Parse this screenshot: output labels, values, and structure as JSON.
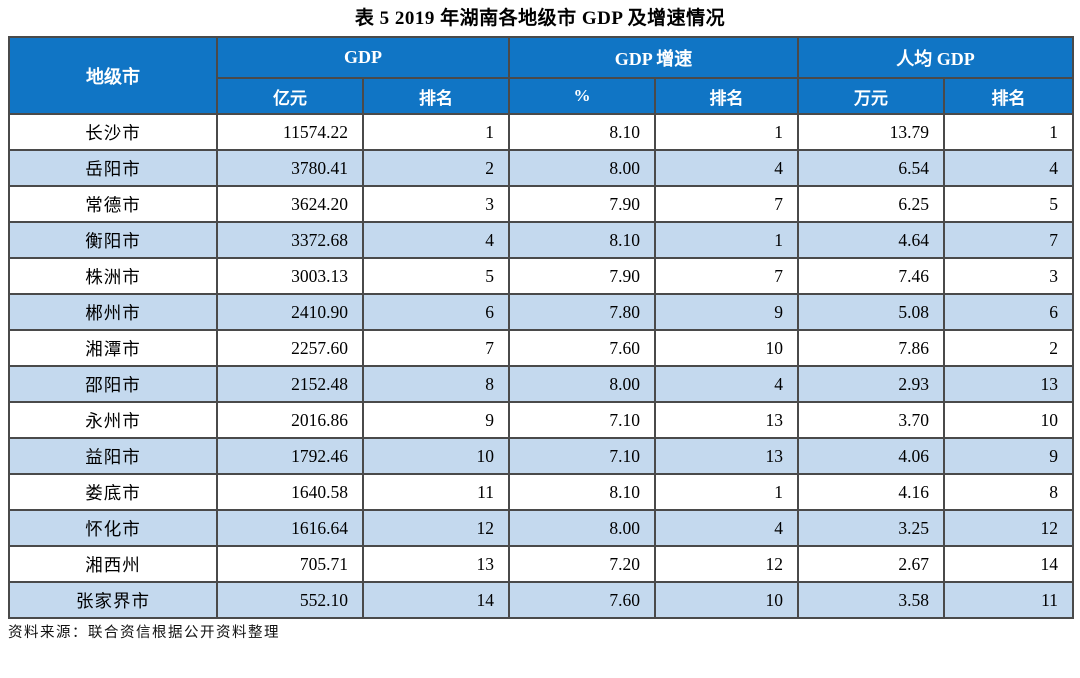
{
  "title": "表 5  2019 年湖南各地级市 GDP 及增速情况",
  "table": {
    "corner_header": "地级市",
    "group_headers": {
      "gdp": "GDP",
      "growth": "GDP 增速",
      "per_capita": "人均 GDP"
    },
    "sub_headers": {
      "gdp_unit": "亿元",
      "gdp_rank": "排名",
      "growth_unit": "%",
      "growth_rank": "排名",
      "pc_unit": "万元",
      "pc_rank": "排名"
    },
    "rows": [
      {
        "city": "长沙市",
        "gdp": "11574.22",
        "gdp_rank": "1",
        "growth": "8.10",
        "growth_rank": "1",
        "pc": "13.79",
        "pc_rank": "1"
      },
      {
        "city": "岳阳市",
        "gdp": "3780.41",
        "gdp_rank": "2",
        "growth": "8.00",
        "growth_rank": "4",
        "pc": "6.54",
        "pc_rank": "4"
      },
      {
        "city": "常德市",
        "gdp": "3624.20",
        "gdp_rank": "3",
        "growth": "7.90",
        "growth_rank": "7",
        "pc": "6.25",
        "pc_rank": "5"
      },
      {
        "city": "衡阳市",
        "gdp": "3372.68",
        "gdp_rank": "4",
        "growth": "8.10",
        "growth_rank": "1",
        "pc": "4.64",
        "pc_rank": "7"
      },
      {
        "city": "株洲市",
        "gdp": "3003.13",
        "gdp_rank": "5",
        "growth": "7.90",
        "growth_rank": "7",
        "pc": "7.46",
        "pc_rank": "3"
      },
      {
        "city": "郴州市",
        "gdp": "2410.90",
        "gdp_rank": "6",
        "growth": "7.80",
        "growth_rank": "9",
        "pc": "5.08",
        "pc_rank": "6"
      },
      {
        "city": "湘潭市",
        "gdp": "2257.60",
        "gdp_rank": "7",
        "growth": "7.60",
        "growth_rank": "10",
        "pc": "7.86",
        "pc_rank": "2"
      },
      {
        "city": "邵阳市",
        "gdp": "2152.48",
        "gdp_rank": "8",
        "growth": "8.00",
        "growth_rank": "4",
        "pc": "2.93",
        "pc_rank": "13"
      },
      {
        "city": "永州市",
        "gdp": "2016.86",
        "gdp_rank": "9",
        "growth": "7.10",
        "growth_rank": "13",
        "pc": "3.70",
        "pc_rank": "10"
      },
      {
        "city": "益阳市",
        "gdp": "1792.46",
        "gdp_rank": "10",
        "growth": "7.10",
        "growth_rank": "13",
        "pc": "4.06",
        "pc_rank": "9"
      },
      {
        "city": "娄底市",
        "gdp": "1640.58",
        "gdp_rank": "11",
        "growth": "8.10",
        "growth_rank": "1",
        "pc": "4.16",
        "pc_rank": "8"
      },
      {
        "city": "怀化市",
        "gdp": "1616.64",
        "gdp_rank": "12",
        "growth": "8.00",
        "growth_rank": "4",
        "pc": "3.25",
        "pc_rank": "12"
      },
      {
        "city": "湘西州",
        "gdp": "705.71",
        "gdp_rank": "13",
        "growth": "7.20",
        "growth_rank": "12",
        "pc": "2.67",
        "pc_rank": "14"
      },
      {
        "city": "张家界市",
        "gdp": "552.10",
        "gdp_rank": "14",
        "growth": "7.60",
        "growth_rank": "10",
        "pc": "3.58",
        "pc_rank": "11"
      }
    ]
  },
  "footer": "资料来源：联合资信根据公开资料整理",
  "colors": {
    "header_bg": "#1075c5",
    "stripe_bg": "#c4d9ee",
    "border": "#4a4a4a",
    "header_text": "#ffffff"
  }
}
